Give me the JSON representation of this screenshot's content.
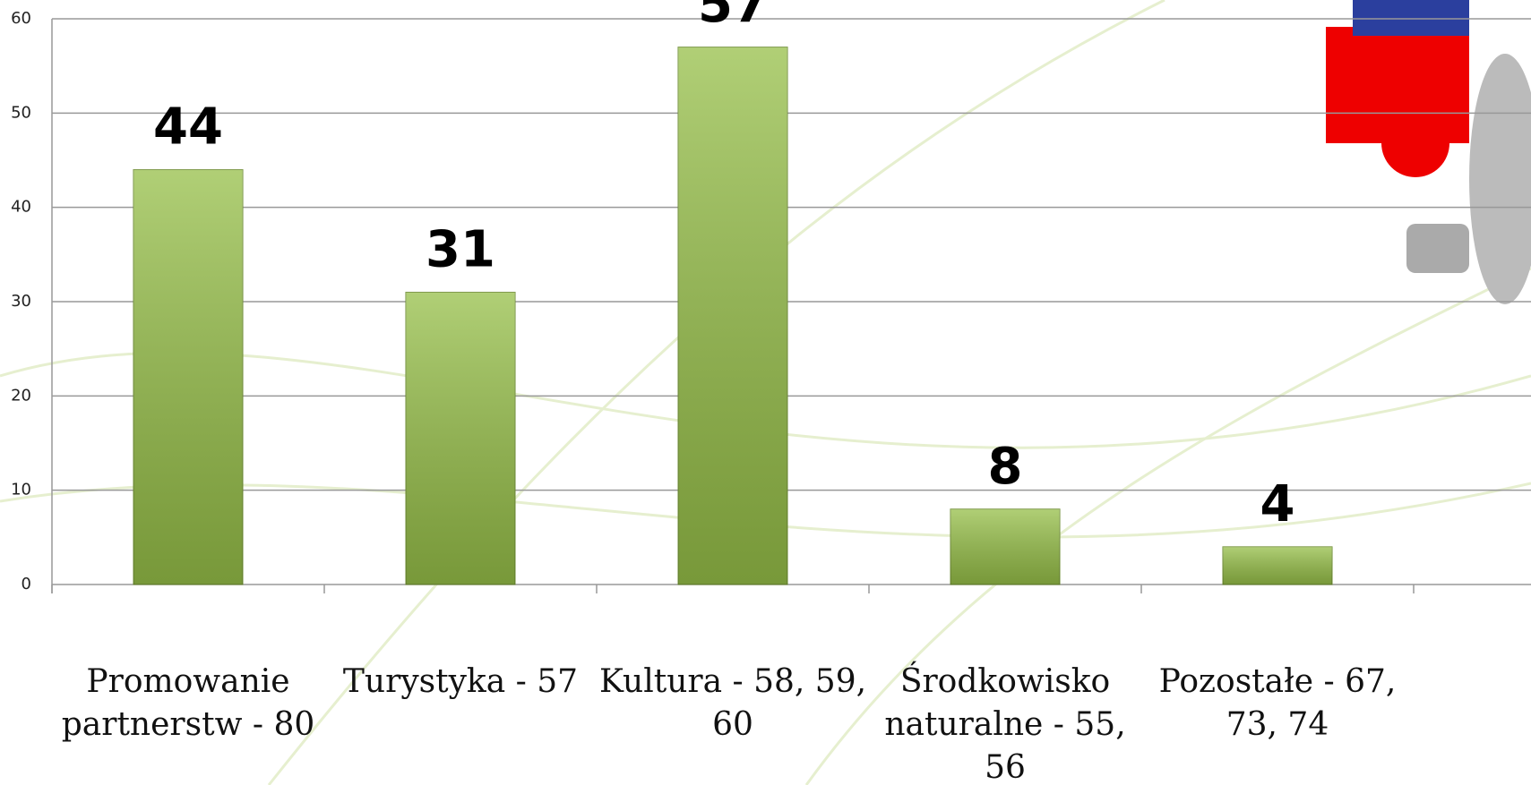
{
  "chart_data": {
    "type": "bar",
    "categories": [
      "Promowanie partnerstw - 80",
      "Turystyka - 57",
      "Kultura - 58, 59, 60",
      "Środkowisko naturalne - 55, 56",
      "Pozostałe - 67, 73, 74"
    ],
    "values": [
      44,
      31,
      57,
      8,
      4
    ],
    "color": "#96bf48",
    "ylim": [
      0,
      60
    ],
    "yticks": [
      0,
      10,
      20,
      30,
      40,
      50,
      60
    ],
    "grid": true
  }
}
